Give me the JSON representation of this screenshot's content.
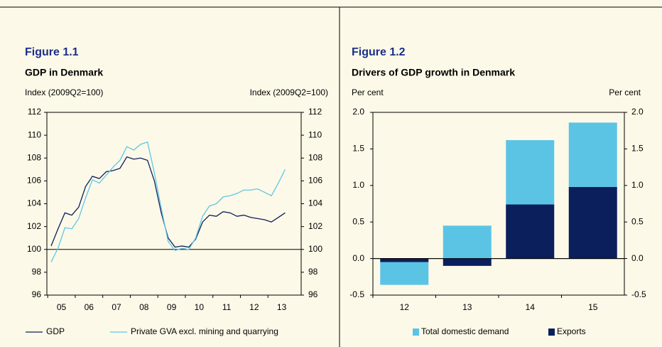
{
  "chart_data": [
    {
      "type": "line",
      "figure_label": "Figure 1.1",
      "title": "GDP in Denmark",
      "y_axis_label": "Index (2009Q2=100)",
      "y2_axis_label": "Index (2009Q2=100)",
      "categories": [
        "05",
        null,
        null,
        null,
        "06",
        null,
        null,
        null,
        "07",
        null,
        null,
        null,
        "08",
        null,
        null,
        null,
        "09",
        null,
        null,
        null,
        "10",
        null,
        null,
        null,
        "11",
        null,
        null,
        null,
        "12",
        null,
        null,
        null,
        "13",
        null,
        null
      ],
      "series": [
        {
          "name": "GDP",
          "color": "#0d1e5b",
          "values": [
            100.3,
            101.8,
            103.2,
            103.0,
            103.7,
            105.5,
            106.4,
            106.2,
            106.8,
            106.9,
            107.1,
            108.1,
            107.9,
            108.0,
            107.8,
            106.0,
            103.2,
            101.0,
            100.2,
            100.3,
            100.2,
            100.9,
            102.4,
            103.0,
            102.9,
            103.3,
            103.2,
            102.9,
            103.0,
            102.8,
            102.7,
            102.6,
            102.4,
            102.8,
            103.2
          ]
        },
        {
          "name": "Private GVA excl. mining and quarrying",
          "color": "#5bc8e8",
          "values": [
            98.9,
            100.1,
            101.9,
            101.8,
            102.7,
            104.5,
            106.1,
            105.8,
            106.5,
            107.2,
            107.8,
            109.0,
            108.7,
            109.2,
            109.4,
            106.7,
            103.6,
            100.7,
            99.9,
            100.1,
            100.0,
            101.0,
            102.9,
            103.8,
            104.0,
            104.6,
            104.7,
            104.9,
            105.2,
            105.2,
            105.3,
            105.0,
            104.7,
            105.8,
            107.0
          ]
        }
      ],
      "ylim": [
        96,
        112
      ],
      "yticks": [
        96,
        98,
        100,
        102,
        104,
        106,
        108,
        110,
        112
      ],
      "y2lim": [
        96,
        112
      ],
      "y2ticks": [
        96,
        98,
        100,
        102,
        104,
        106,
        108,
        110,
        112
      ],
      "reference_line": 100,
      "legend": "bottom"
    },
    {
      "type": "bar",
      "stacked": true,
      "figure_label": "Figure 1.2",
      "title": "Drivers of GDP growth in Denmark",
      "y_axis_label": "Per cent",
      "y2_axis_label": "Per cent",
      "categories": [
        "12",
        "13",
        "14",
        "15"
      ],
      "series": [
        {
          "name": "Total domestic demand",
          "color": "#5bc4e5",
          "values": [
            -0.31,
            0.45,
            0.88,
            0.88
          ]
        },
        {
          "name": "Exports",
          "color": "#0a1f5c",
          "values": [
            -0.05,
            -0.1,
            0.74,
            0.98
          ]
        }
      ],
      "ylim": [
        -0.5,
        2.0
      ],
      "yticks": [
        -0.5,
        {
          "value": 0,
          "label": "0.0"
        },
        0.5,
        {
          "value": 1,
          "label": "1.0"
        },
        1.5,
        {
          "value": 2,
          "label": "2.0"
        }
      ],
      "y2lim": [
        -0.5,
        2.0
      ],
      "y2ticks": [
        -0.5,
        {
          "value": 0,
          "label": "0.0"
        },
        0.5,
        {
          "value": 1,
          "label": "1.0"
        },
        1.5,
        {
          "value": 2,
          "label": "2.0"
        }
      ],
      "reference_line": 0,
      "legend": "bottom"
    }
  ]
}
